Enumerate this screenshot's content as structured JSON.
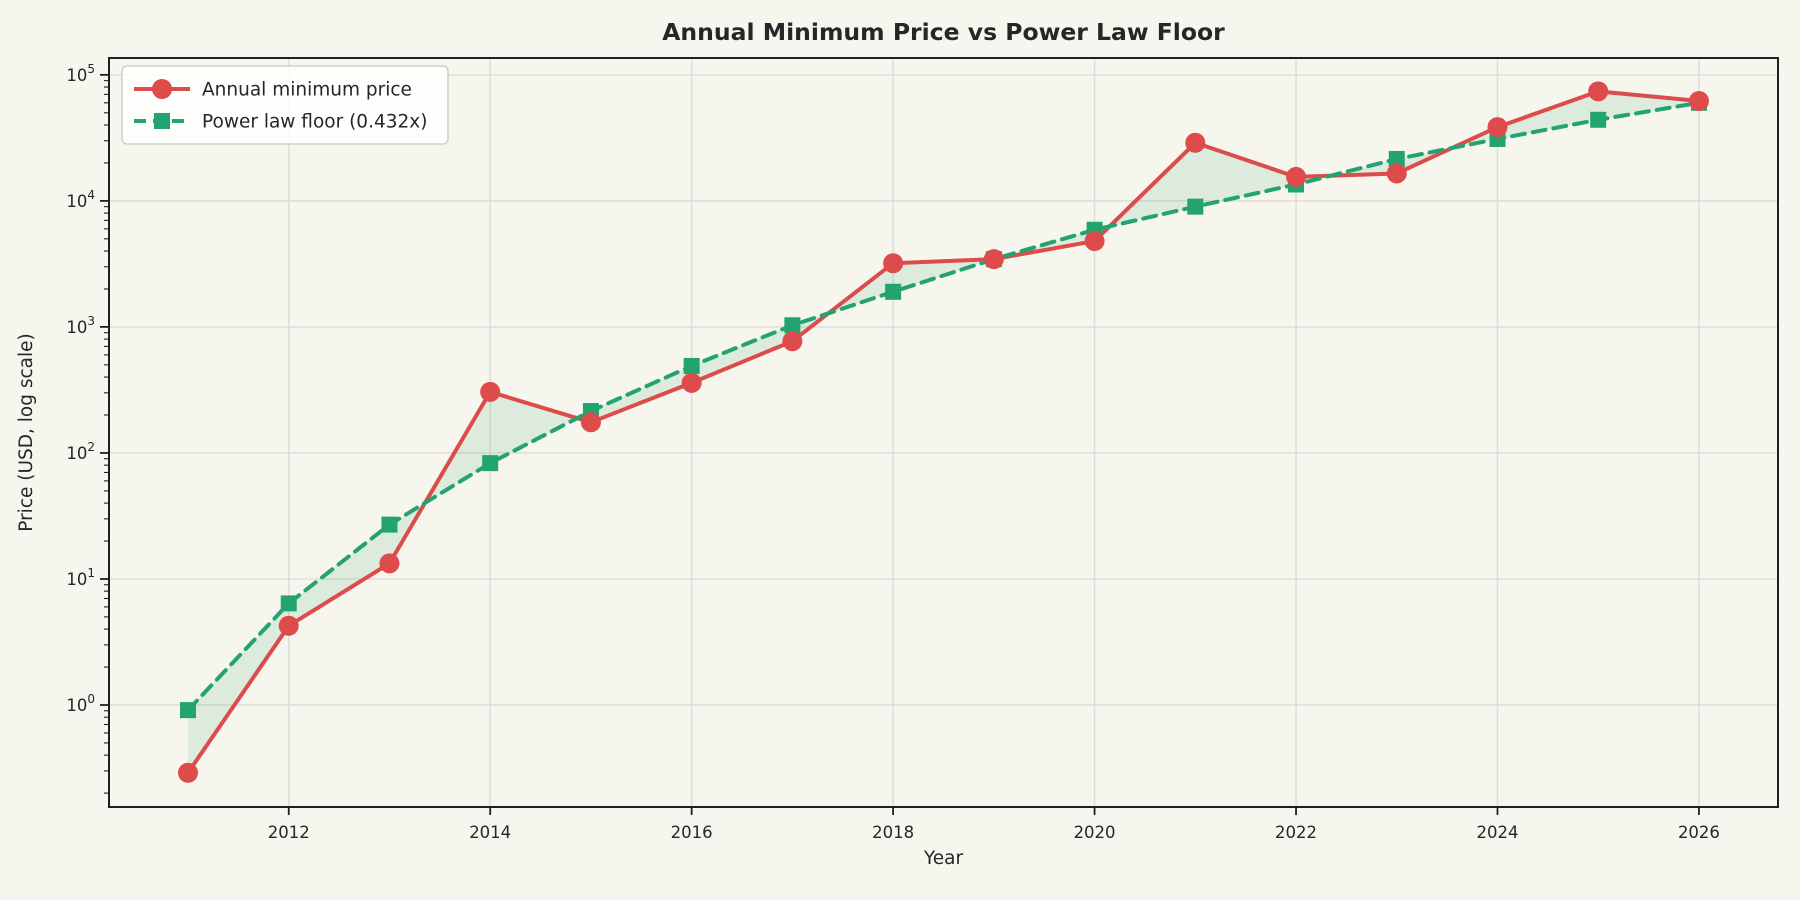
{
  "chart_data": {
    "type": "line",
    "title": "Annual Minimum Price vs Power Law Floor",
    "xlabel": "Year",
    "ylabel": "Price (USD, log scale)",
    "x": [
      2011,
      2012,
      2013,
      2014,
      2015,
      2016,
      2017,
      2018,
      2019,
      2020,
      2021,
      2022,
      2023,
      2024,
      2025,
      2026
    ],
    "series": [
      {
        "name": "Annual minimum price",
        "color": "#dd4b4b",
        "line_style": "solid",
        "marker": "circle",
        "values": [
          0.29,
          4.25,
          13.3,
          305,
          175,
          360,
          770,
          3200,
          3450,
          4800,
          28900,
          15500,
          16500,
          38500,
          74000,
          62000
        ]
      },
      {
        "name": "Power law floor (0.432x)",
        "color": "#23a36d",
        "line_style": "dashed",
        "marker": "square",
        "values": [
          0.91,
          6.4,
          27,
          83,
          215,
          490,
          1030,
          1900,
          3450,
          5900,
          9000,
          13500,
          21500,
          31000,
          44000,
          60000
        ]
      }
    ],
    "x_ticks": [
      2012,
      2014,
      2016,
      2018,
      2020,
      2022,
      2024,
      2026
    ],
    "y_tick_base": "10",
    "y_tick_exponents": [
      0,
      1,
      2,
      3,
      4,
      5
    ],
    "xlim": [
      2010.215,
      2026.785
    ],
    "ylim": [
      0.155,
      136000
    ],
    "y_scale": "log",
    "grid": true,
    "legend_position": "upper-left",
    "fill_between": true,
    "fill_color": "rgba(44,160,100,0.12)",
    "background_color": "#f6f6ef",
    "grid_color": "#dcdcd8",
    "spine_color": "#1f1f1f",
    "text_color": "#262626"
  }
}
